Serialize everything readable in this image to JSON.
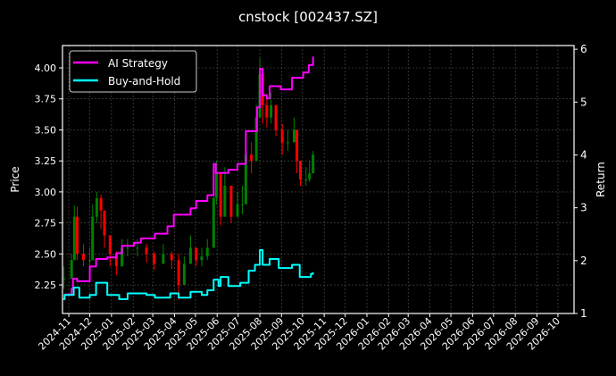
{
  "chart_data": {
    "type": "line",
    "title": "cnstock [002437.SZ]",
    "ylabel": "Price",
    "y2label": "Return",
    "xlim": [
      "2024-10-23",
      "2026-10-24"
    ],
    "ylim": [
      2.02,
      4.18
    ],
    "y2lim": [
      1.0,
      6.07
    ],
    "grid": true,
    "legend_position": "top-left",
    "x_ticks": [
      "2024-11",
      "2024-12",
      "2025-01",
      "2025-02",
      "2025-03",
      "2025-04",
      "2025-05",
      "2025-06",
      "2025-07",
      "2025-08",
      "2025-09",
      "2025-10",
      "2025-11",
      "2025-12",
      "2026-01",
      "2026-02",
      "2026-03",
      "2026-04",
      "2026-05",
      "2026-06",
      "2026-07",
      "2026-08",
      "2026-09",
      "2026-10"
    ],
    "y_ticks": [
      "2.25",
      "2.50",
      "2.75",
      "3.00",
      "3.25",
      "3.50",
      "3.75",
      "4.00"
    ],
    "y2_ticks": [
      "1",
      "2",
      "3",
      "4",
      "5",
      "6"
    ],
    "colors": {
      "ai": "#ff00ff",
      "bh": "#00ffff",
      "up": "#008000",
      "down": "#ff0000",
      "grid": "#555555"
    },
    "price_candles": [
      [
        "2024-10-25",
        2.3,
        2.4,
        2.22,
        2.3
      ],
      [
        "2024-11-05",
        2.3,
        2.5,
        2.3,
        2.45
      ],
      [
        "2024-11-09",
        2.45,
        2.89,
        2.45,
        2.8
      ],
      [
        "2024-11-13",
        2.8,
        2.88,
        2.45,
        2.5
      ],
      [
        "2024-11-22",
        2.5,
        2.58,
        2.4,
        2.45
      ],
      [
        "2024-12-01",
        2.45,
        2.55,
        2.4,
        2.45
      ],
      [
        "2024-12-05",
        2.45,
        2.9,
        2.5,
        2.8
      ],
      [
        "2024-12-11",
        2.8,
        3.0,
        2.75,
        2.95
      ],
      [
        "2024-12-17",
        2.95,
        2.98,
        2.7,
        2.85
      ],
      [
        "2024-12-22",
        2.85,
        2.75,
        2.55,
        2.65
      ],
      [
        "2024-12-30",
        2.65,
        2.6,
        2.4,
        2.5
      ],
      [
        "2025-01-08",
        2.5,
        2.52,
        2.33,
        2.4
      ],
      [
        "2025-01-16",
        2.4,
        2.62,
        2.45,
        2.55
      ],
      [
        "2025-01-24",
        2.55,
        2.62,
        2.48,
        2.55
      ],
      [
        "2025-02-07",
        2.55,
        2.62,
        2.48,
        2.55
      ],
      [
        "2025-02-20",
        2.55,
        2.58,
        2.43,
        2.5
      ],
      [
        "2025-03-03",
        2.5,
        2.52,
        2.37,
        2.42
      ],
      [
        "2025-03-16",
        2.42,
        2.58,
        2.42,
        2.5
      ],
      [
        "2025-03-28",
        2.5,
        2.52,
        2.38,
        2.45
      ],
      [
        "2025-04-07",
        2.45,
        2.5,
        2.13,
        2.25
      ],
      [
        "2025-04-15",
        2.25,
        2.48,
        2.33,
        2.42
      ],
      [
        "2025-04-24",
        2.42,
        2.65,
        2.45,
        2.55
      ],
      [
        "2025-05-02",
        2.55,
        2.55,
        2.4,
        2.45
      ],
      [
        "2025-05-10",
        2.45,
        2.55,
        2.4,
        2.48
      ],
      [
        "2025-05-18",
        2.48,
        2.62,
        2.45,
        2.55
      ],
      [
        "2025-05-27",
        2.55,
        3.05,
        2.65,
        2.95
      ],
      [
        "2025-05-31",
        2.95,
        3.25,
        2.9,
        3.15
      ],
      [
        "2025-06-06",
        3.15,
        3.1,
        2.73,
        2.8
      ],
      [
        "2025-06-12",
        2.8,
        3.2,
        2.85,
        3.05
      ],
      [
        "2025-06-21",
        3.05,
        2.95,
        2.75,
        2.8
      ],
      [
        "2025-06-30",
        2.8,
        3.0,
        2.8,
        2.9
      ],
      [
        "2025-07-07",
        2.9,
        3.05,
        2.82,
        2.9
      ],
      [
        "2025-07-12",
        2.9,
        3.4,
        3.0,
        3.3
      ],
      [
        "2025-07-20",
        3.3,
        3.4,
        3.15,
        3.25
      ],
      [
        "2025-07-27",
        3.25,
        3.7,
        3.4,
        3.6
      ],
      [
        "2025-08-01",
        3.6,
        4.08,
        3.7,
        3.95
      ],
      [
        "2025-08-05",
        3.95,
        3.85,
        3.55,
        3.7
      ],
      [
        "2025-08-11",
        3.7,
        3.75,
        3.52,
        3.6
      ],
      [
        "2025-08-17",
        3.6,
        3.8,
        3.55,
        3.7
      ],
      [
        "2025-08-24",
        3.7,
        3.65,
        3.45,
        3.5
      ],
      [
        "2025-09-02",
        3.5,
        3.55,
        3.3,
        3.4
      ],
      [
        "2025-09-10",
        3.4,
        3.5,
        3.33,
        3.4
      ],
      [
        "2025-09-19",
        3.4,
        3.6,
        3.4,
        3.5
      ],
      [
        "2025-09-23",
        3.5,
        3.45,
        3.15,
        3.25
      ],
      [
        "2025-09-28",
        3.25,
        3.2,
        3.05,
        3.1
      ],
      [
        "2025-10-06",
        3.1,
        3.2,
        3.05,
        3.1
      ],
      [
        "2025-10-11",
        3.1,
        3.25,
        3.08,
        3.15
      ],
      [
        "2025-10-16",
        3.15,
        3.33,
        3.15,
        3.3
      ]
    ],
    "series": [
      {
        "name": "AI Strategy",
        "axis": "right",
        "points": [
          [
            "2024-10-26",
            1.36
          ],
          [
            "2024-11-05",
            1.47
          ],
          [
            "2024-11-07",
            1.66
          ],
          [
            "2024-11-13",
            1.61
          ],
          [
            "2024-12-01",
            1.89
          ],
          [
            "2024-12-10",
            2.03
          ],
          [
            "2024-12-26",
            2.06
          ],
          [
            "2025-01-08",
            2.14
          ],
          [
            "2025-01-16",
            2.28
          ],
          [
            "2025-02-02",
            2.34
          ],
          [
            "2025-02-12",
            2.42
          ],
          [
            "2025-03-04",
            2.51
          ],
          [
            "2025-03-22",
            2.65
          ],
          [
            "2025-03-31",
            2.87
          ],
          [
            "2025-04-07",
            2.87
          ],
          [
            "2025-04-24",
            2.99
          ],
          [
            "2025-05-02",
            3.13
          ],
          [
            "2025-05-18",
            3.24
          ],
          [
            "2025-05-27",
            3.83
          ],
          [
            "2025-05-30",
            3.66
          ],
          [
            "2025-06-17",
            3.72
          ],
          [
            "2025-06-30",
            3.83
          ],
          [
            "2025-07-12",
            4.45
          ],
          [
            "2025-07-20",
            4.45
          ],
          [
            "2025-07-28",
            4.9
          ],
          [
            "2025-08-01",
            5.63
          ],
          [
            "2025-08-05",
            5.13
          ],
          [
            "2025-08-11",
            5.07
          ],
          [
            "2025-08-15",
            5.3
          ],
          [
            "2025-08-31",
            5.24
          ],
          [
            "2025-09-16",
            5.46
          ],
          [
            "2025-10-02",
            5.56
          ],
          [
            "2025-10-10",
            5.7
          ],
          [
            "2025-10-16",
            5.86
          ]
        ]
      },
      {
        "name": "Buy-and-Hold",
        "axis": "right",
        "points": [
          [
            "2024-10-24",
            1.27
          ],
          [
            "2024-10-26",
            1.35
          ],
          [
            "2024-11-08",
            1.49
          ],
          [
            "2024-11-16",
            1.3
          ],
          [
            "2024-12-01",
            1.35
          ],
          [
            "2024-12-10",
            1.58
          ],
          [
            "2024-12-26",
            1.35
          ],
          [
            "2025-01-12",
            1.27
          ],
          [
            "2025-01-24",
            1.38
          ],
          [
            "2025-02-20",
            1.35
          ],
          [
            "2025-03-04",
            1.3
          ],
          [
            "2025-03-26",
            1.38
          ],
          [
            "2025-04-07",
            1.3
          ],
          [
            "2025-04-24",
            1.41
          ],
          [
            "2025-05-10",
            1.35
          ],
          [
            "2025-05-18",
            1.44
          ],
          [
            "2025-05-27",
            1.64
          ],
          [
            "2025-06-03",
            1.52
          ],
          [
            "2025-06-06",
            1.69
          ],
          [
            "2025-06-17",
            1.52
          ],
          [
            "2025-07-04",
            1.58
          ],
          [
            "2025-07-16",
            1.81
          ],
          [
            "2025-07-25",
            1.92
          ],
          [
            "2025-08-01",
            2.2
          ],
          [
            "2025-08-05",
            1.92
          ],
          [
            "2025-08-15",
            2.03
          ],
          [
            "2025-08-28",
            1.86
          ],
          [
            "2025-09-16",
            1.92
          ],
          [
            "2025-09-27",
            1.69
          ],
          [
            "2025-10-05",
            1.69
          ],
          [
            "2025-10-13",
            1.75
          ],
          [
            "2025-10-16",
            1.78
          ]
        ]
      }
    ]
  }
}
